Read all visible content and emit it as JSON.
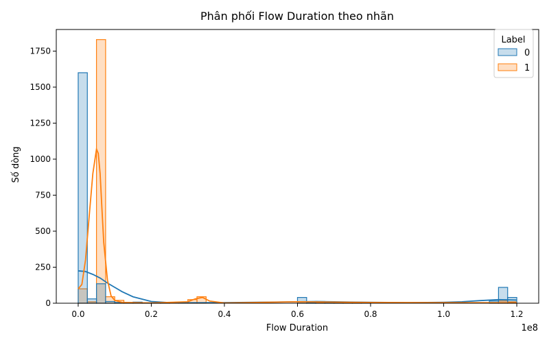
{
  "chart_data": {
    "type": "histogram",
    "title": "Phân phối Flow Duration theo nhãn",
    "xlabel": "Flow Duration",
    "ylabel": "Số dòng",
    "x_offset_label": "1e8",
    "x_unit_scale": 100000000,
    "xlim": [
      -0.06,
      1.26
    ],
    "ylim": [
      0,
      1900
    ],
    "x_ticks": [
      0.0,
      0.2,
      0.4,
      0.6,
      0.8,
      1.0,
      1.2
    ],
    "x_tick_labels": [
      "0.0",
      "0.2",
      "0.4",
      "0.6",
      "0.8",
      "1.0",
      "1.2"
    ],
    "y_ticks": [
      0,
      250,
      500,
      750,
      1000,
      1250,
      1500,
      1750
    ],
    "y_tick_labels": [
      "0",
      "250",
      "500",
      "750",
      "1000",
      "1250",
      "1500",
      "1750"
    ],
    "bin_width": 0.025,
    "bins_start": 0.0,
    "legend": {
      "title": "Label",
      "position": "top-right"
    },
    "series": [
      {
        "name": "0",
        "color": "#1f77b4",
        "fill": "rgba(31,119,180,0.25)",
        "counts": [
          1600,
          30,
          135,
          12,
          5,
          5,
          8,
          3,
          2,
          1,
          0,
          0,
          0,
          0,
          0,
          0,
          0,
          0,
          0,
          0,
          0,
          0,
          0,
          0,
          40,
          5,
          12,
          3,
          2,
          1,
          1,
          1,
          0,
          0,
          0,
          0,
          0,
          0,
          0,
          0,
          0,
          0,
          0,
          0,
          0,
          15,
          110,
          40
        ],
        "kde_x": [
          0,
          0.02,
          0.04,
          0.06,
          0.08,
          0.1,
          0.12,
          0.15,
          0.2,
          0.25,
          0.3,
          0.4,
          0.5,
          0.6,
          0.65,
          0.7,
          0.8,
          0.9,
          1.0,
          1.05,
          1.1,
          1.15,
          1.2
        ],
        "kde_y": [
          225,
          220,
          200,
          175,
          140,
          110,
          80,
          45,
          12,
          4,
          3,
          4,
          7,
          10,
          12,
          10,
          6,
          4,
          6,
          10,
          18,
          25,
          22
        ]
      },
      {
        "name": "1",
        "color": "#ff7f0e",
        "fill": "rgba(255,127,14,0.25)",
        "counts": [
          100,
          10,
          1830,
          45,
          20,
          5,
          3,
          2,
          1,
          1,
          1,
          1,
          25,
          45,
          0,
          0,
          0,
          0,
          0,
          0,
          0,
          0,
          0,
          0,
          10,
          5,
          5,
          3,
          2,
          1,
          1,
          0,
          0,
          0,
          0,
          0,
          0,
          0,
          0,
          0,
          0,
          0,
          0,
          0,
          0,
          5,
          15,
          10
        ],
        "kde_x": [
          0,
          0.01,
          0.02,
          0.03,
          0.04,
          0.05,
          0.055,
          0.06,
          0.065,
          0.07,
          0.08,
          0.09,
          0.1,
          0.12,
          0.2,
          0.3,
          0.32,
          0.34,
          0.36,
          0.4,
          0.6,
          0.8,
          1.0,
          1.2
        ],
        "kde_y": [
          100,
          130,
          300,
          600,
          900,
          1070,
          1040,
          900,
          650,
          420,
          160,
          50,
          20,
          5,
          2,
          10,
          30,
          40,
          15,
          2,
          10,
          5,
          4,
          3
        ]
      }
    ]
  }
}
